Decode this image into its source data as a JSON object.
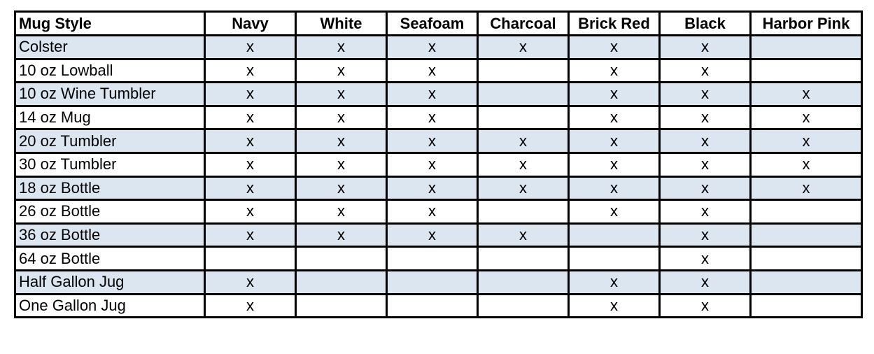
{
  "table": {
    "columns": [
      "Mug Style",
      "Navy",
      "White",
      "Seafoam",
      "Charcoal",
      "Brick Red",
      "Black",
      "Harbor Pink"
    ],
    "rows": [
      [
        "Colster",
        "x",
        "x",
        "x",
        "x",
        "x",
        "x",
        null
      ],
      [
        "10 oz Lowball",
        "x",
        "x",
        "x",
        null,
        "x",
        "x",
        null
      ],
      [
        "10 oz Wine Tumbler",
        "x",
        "x",
        "x",
        null,
        "x",
        "x",
        "x"
      ],
      [
        "14 oz Mug",
        "x",
        "x",
        "x",
        null,
        "x",
        "x",
        "x"
      ],
      [
        "20 oz Tumbler",
        "x",
        "x",
        "x",
        "x",
        "x",
        "x",
        "x"
      ],
      [
        "30 oz Tumbler",
        "x",
        "x",
        "x",
        "x",
        "x",
        "x",
        "x"
      ],
      [
        "18 oz Bottle",
        "x",
        "x",
        "x",
        "x",
        "x",
        "x",
        "x"
      ],
      [
        "26 oz Bottle",
        "x",
        "x",
        "x",
        null,
        "x",
        "x",
        null
      ],
      [
        "36 oz Bottle",
        "x",
        "x",
        "x",
        "x",
        null,
        "x",
        null
      ],
      [
        "64 oz Bottle",
        null,
        null,
        null,
        null,
        null,
        "x",
        null
      ],
      [
        "Half Gallon Jug",
        "x",
        null,
        null,
        null,
        "x",
        "x",
        null
      ],
      [
        "One Gallon Jug",
        "x",
        null,
        null,
        null,
        "x",
        "x",
        null
      ]
    ]
  }
}
